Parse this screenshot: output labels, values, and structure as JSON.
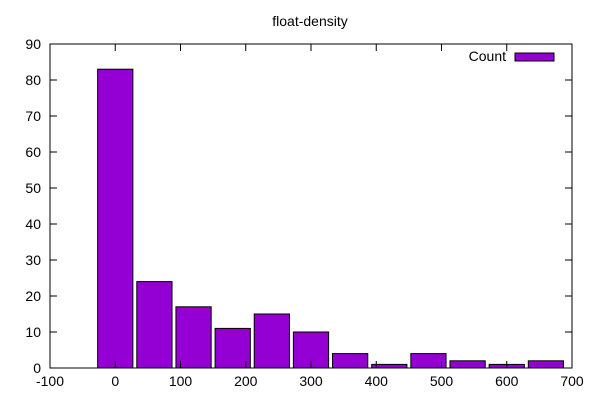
{
  "chart_data": {
    "type": "bar",
    "title": "float-density",
    "xlabel": "",
    "ylabel": "",
    "x_ticks": [
      -100,
      0,
      100,
      200,
      300,
      400,
      500,
      600,
      700
    ],
    "y_ticks": [
      0,
      10,
      20,
      30,
      40,
      50,
      60,
      70,
      80,
      90
    ],
    "xlim": [
      -100,
      700
    ],
    "ylim": [
      0,
      90
    ],
    "bin_width": 60,
    "bar_fill_fraction": 0.9,
    "grid": false,
    "legend_position": "top-right",
    "series": [
      {
        "name": "Count",
        "color": "#9400d3",
        "x": [
          0,
          60,
          120,
          180,
          240,
          300,
          360,
          420,
          480,
          540,
          600,
          660
        ],
        "values": [
          83,
          24,
          17,
          11,
          15,
          10,
          4,
          1,
          4,
          2,
          1,
          2
        ]
      }
    ]
  }
}
